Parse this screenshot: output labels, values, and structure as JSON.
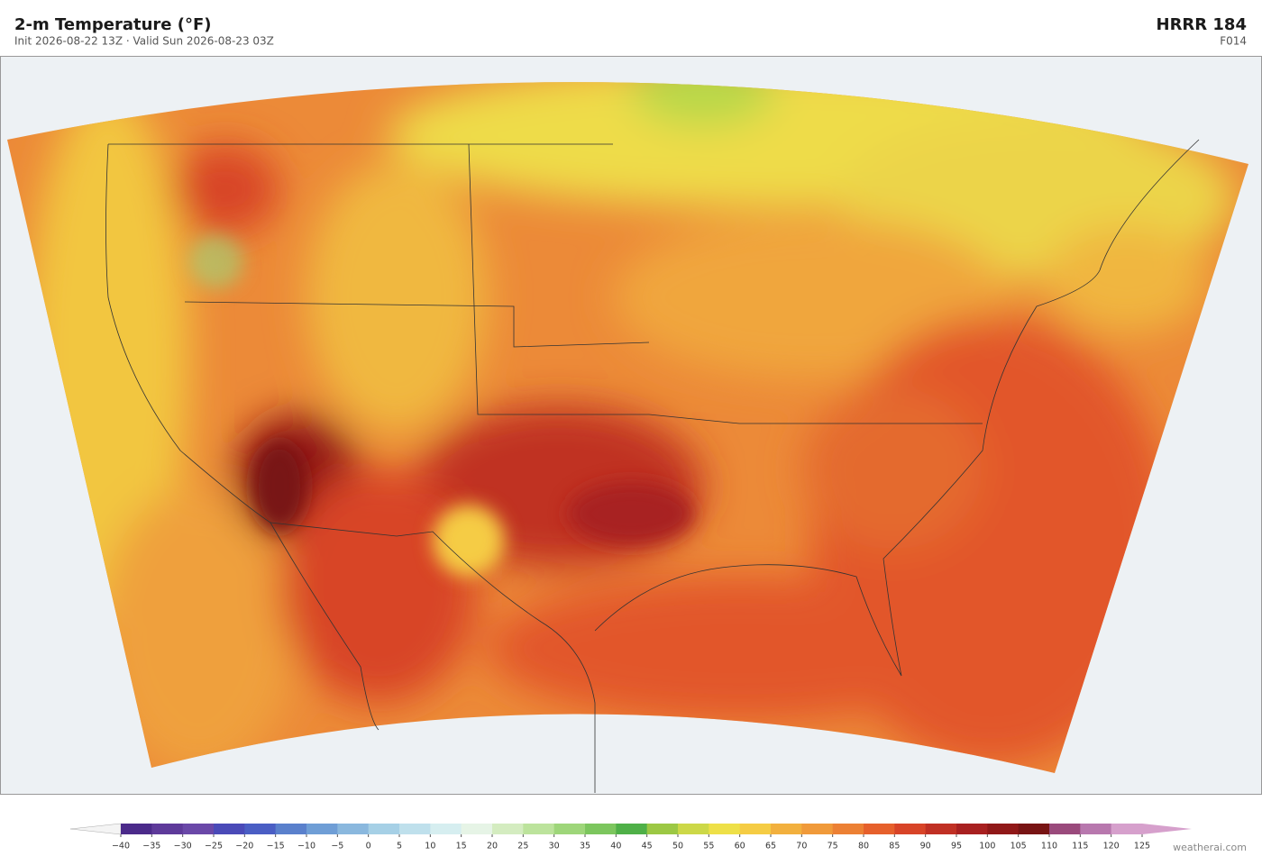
{
  "header": {
    "title": "2-m Temperature  (°F)",
    "subtitle": "Init 2026-08-22 13Z   ·   Valid Sun 2026-08-23 03Z",
    "model": "HRRR  184",
    "forecast_hour": "F014"
  },
  "colorbar": {
    "ticks": [
      {
        "value": -40,
        "label": "−40"
      },
      {
        "value": -35,
        "label": "−35"
      },
      {
        "value": -30,
        "label": "−30"
      },
      {
        "value": -25,
        "label": "−25"
      },
      {
        "value": -20,
        "label": "−20"
      },
      {
        "value": -15,
        "label": "−15"
      },
      {
        "value": -10,
        "label": "−10"
      },
      {
        "value": -5,
        "label": "−5"
      },
      0,
      5,
      10,
      15,
      20,
      25,
      30,
      35,
      40,
      45,
      50,
      55,
      60,
      65,
      70,
      75,
      80,
      85,
      90,
      95,
      100,
      105,
      110,
      115,
      120,
      125
    ],
    "colors": [
      "#4b2a8a",
      "#5e3a9a",
      "#6a48a8",
      "#4a4ab8",
      "#4a5ec4",
      "#5a80cc",
      "#6f9ed6",
      "#8ab8de",
      "#a6d0e6",
      "#bfe0ec",
      "#d6eef0",
      "#e6f4e6",
      "#d4ecc0",
      "#bce39c",
      "#9ed67a",
      "#7cc65e",
      "#4fb048",
      "#9cc844",
      "#ccd848",
      "#eee048",
      "#f5cc44",
      "#f2b03e",
      "#f09a3a",
      "#ec8034",
      "#e6602c",
      "#d84428",
      "#c03024",
      "#a82020",
      "#901818",
      "#781414",
      "#9a4a7c",
      "#b878ae",
      "#d6a0cc"
    ],
    "under_color": "#f4f4f4",
    "over_color": "#d6a0cc"
  },
  "footer": {
    "credit": "weatherai.com"
  }
}
